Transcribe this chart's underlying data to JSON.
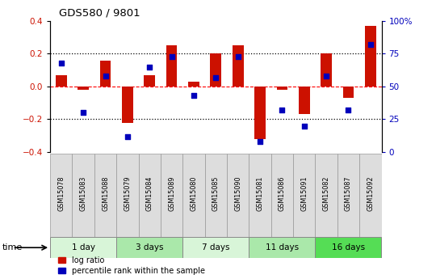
{
  "title": "GDS580 / 9801",
  "samples": [
    "GSM15078",
    "GSM15083",
    "GSM15088",
    "GSM15079",
    "GSM15084",
    "GSM15089",
    "GSM15080",
    "GSM15085",
    "GSM15090",
    "GSM15081",
    "GSM15086",
    "GSM15091",
    "GSM15082",
    "GSM15087",
    "GSM15092"
  ],
  "log_ratio": [
    0.07,
    -0.02,
    0.16,
    -0.22,
    0.07,
    0.25,
    0.03,
    0.2,
    0.25,
    -0.32,
    -0.02,
    -0.17,
    0.2,
    -0.07,
    0.37
  ],
  "pct_rank": [
    68,
    30,
    58,
    12,
    65,
    73,
    43,
    57,
    73,
    8,
    32,
    20,
    58,
    32,
    82
  ],
  "groups": [
    {
      "label": "1 day",
      "start": 0,
      "end": 3,
      "color": "#d8f5d8"
    },
    {
      "label": "3 days",
      "start": 3,
      "end": 6,
      "color": "#aae8aa"
    },
    {
      "label": "7 days",
      "start": 6,
      "end": 9,
      "color": "#d8f5d8"
    },
    {
      "label": "11 days",
      "start": 9,
      "end": 12,
      "color": "#aae8aa"
    },
    {
      "label": "16 days",
      "start": 12,
      "end": 15,
      "color": "#55dd55"
    }
  ],
  "bar_color": "#cc1100",
  "dot_color": "#0000bb",
  "ylim": [
    -0.4,
    0.4
  ],
  "yticks_left": [
    -0.4,
    -0.2,
    0.0,
    0.2,
    0.4
  ],
  "yticks_right": [
    0,
    25,
    50,
    75,
    100
  ],
  "ytick_labels_right": [
    "0",
    "25",
    "50",
    "75",
    "100%"
  ],
  "hlines_dotted": [
    -0.2,
    0.2
  ],
  "hline_dashed": 0.0,
  "legend_log_ratio": "log ratio",
  "legend_pct": "percentile rank within the sample",
  "time_label": "time"
}
